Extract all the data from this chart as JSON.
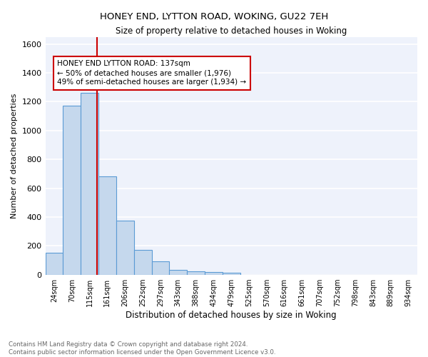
{
  "title1": "HONEY END, LYTTON ROAD, WOKING, GU22 7EH",
  "title2": "Size of property relative to detached houses in Woking",
  "xlabel": "Distribution of detached houses by size in Woking",
  "ylabel": "Number of detached properties",
  "categories": [
    "24sqm",
    "70sqm",
    "115sqm",
    "161sqm",
    "206sqm",
    "252sqm",
    "297sqm",
    "343sqm",
    "388sqm",
    "434sqm",
    "479sqm",
    "525sqm",
    "570sqm",
    "616sqm",
    "661sqm",
    "707sqm",
    "752sqm",
    "798sqm",
    "843sqm",
    "889sqm",
    "934sqm"
  ],
  "bar_color": "#c5d8ed",
  "bar_edge_color": "#5b9bd5",
  "ylim": [
    0,
    1650
  ],
  "yticks": [
    0,
    200,
    400,
    600,
    800,
    1000,
    1200,
    1400,
    1600
  ],
  "property_line_x": 2.42,
  "property_line_color": "#cc0000",
  "annotation_text": "HONEY END LYTTON ROAD: 137sqm\n← 50% of detached houses are smaller (1,976)\n49% of semi-detached houses are larger (1,934) →",
  "annotation_box_color": "#ffffff",
  "annotation_box_edge": "#cc0000",
  "background_color": "#eef2fb",
  "grid_color": "#ffffff",
  "footer": "Contains HM Land Registry data © Crown copyright and database right 2024.\nContains public sector information licensed under the Open Government Licence v3.0.",
  "all_bar_values": [
    150,
    1175,
    1260,
    680,
    375,
    170,
    90,
    35,
    25,
    20,
    15,
    0,
    0,
    0,
    0,
    0,
    0,
    0,
    0,
    0,
    0
  ]
}
